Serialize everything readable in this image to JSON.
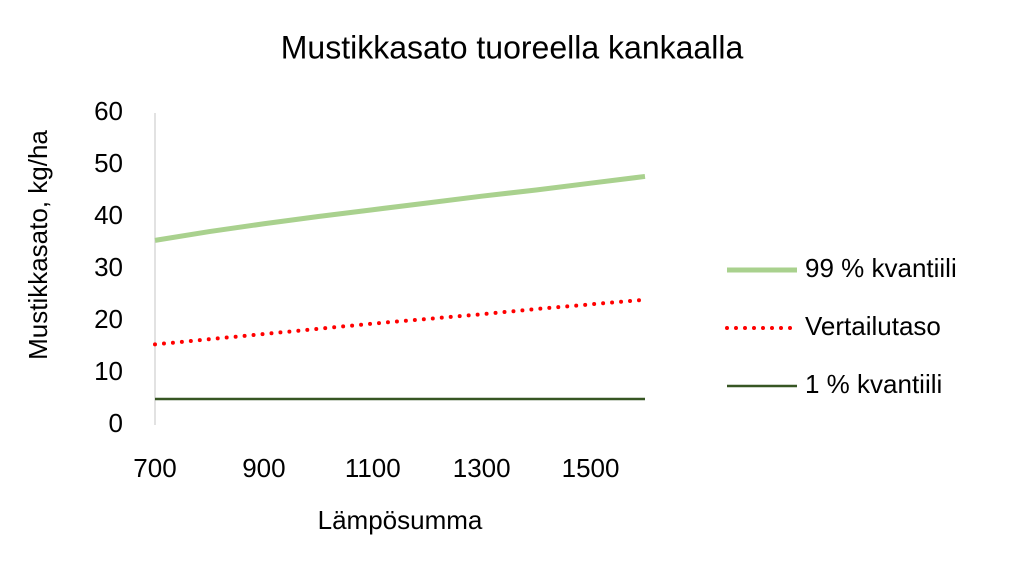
{
  "chart_data": {
    "type": "line",
    "title": "Mustikkasato tuoreella kankaalla",
    "x_label": "Lämpösumma",
    "y_label": "Mustikkasato, kg/ha",
    "x": [
      700,
      800,
      900,
      1000,
      1100,
      1200,
      1300,
      1400,
      1500,
      1600
    ],
    "series": [
      {
        "name": "99 % kvantiili",
        "color": "#a9d18e",
        "style": "solid",
        "width": 5,
        "values": [
          35.5,
          37.2,
          38.7,
          40.1,
          41.4,
          42.7,
          44.0,
          45.2,
          46.5,
          47.8
        ]
      },
      {
        "name": "Vertailutaso",
        "color": "#ff0000",
        "style": "dotted",
        "width": 4,
        "values": [
          15.5,
          16.5,
          17.5,
          18.5,
          19.5,
          20.4,
          21.3,
          22.3,
          23.2,
          24.1
        ]
      },
      {
        "name": "1 % kvantiili",
        "color": "#375623",
        "style": "solid",
        "width": 2.5,
        "values": [
          5,
          5,
          5,
          5,
          5,
          5,
          5,
          5,
          5,
          5
        ]
      }
    ],
    "xlim": [
      700,
      1600
    ],
    "xticks": [
      700,
      900,
      1100,
      1300,
      1500
    ],
    "ylim": [
      0,
      60
    ],
    "yticks": [
      0,
      10,
      20,
      30,
      40,
      50,
      60
    ],
    "grid": false,
    "legend": "right"
  }
}
